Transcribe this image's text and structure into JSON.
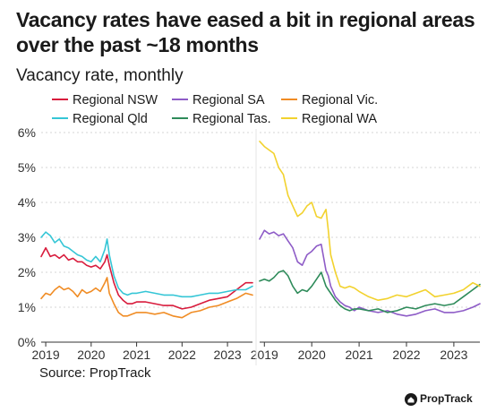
{
  "title": "Vacancy rates have eased a bit in regional areas over the past ~18 months",
  "subtitle": "Vacancy rate, monthly",
  "source": "Source: PropTrack",
  "brand": "PropTrack",
  "brand_icon": "house-logo-icon",
  "chart_data": [
    {
      "type": "line",
      "panel": "left",
      "ylim": [
        0,
        6
      ],
      "yticks": [
        "0%",
        "1%",
        "2%",
        "3%",
        "4%",
        "5%",
        "6%"
      ],
      "xticks": [
        "2019",
        "2020",
        "2021",
        "2022",
        "2023"
      ],
      "xlim": [
        2018.9,
        2023.55
      ],
      "grid": "horizontal",
      "series": [
        {
          "name": "Regional NSW",
          "color": "#d81b3c",
          "x": [
            2018.9,
            2019.0,
            2019.1,
            2019.2,
            2019.3,
            2019.4,
            2019.5,
            2019.6,
            2019.7,
            2019.8,
            2019.9,
            2020.0,
            2020.1,
            2020.2,
            2020.3,
            2020.35,
            2020.4,
            2020.5,
            2020.6,
            2020.7,
            2020.8,
            2020.9,
            2021.0,
            2021.2,
            2021.4,
            2021.6,
            2021.8,
            2022.0,
            2022.2,
            2022.4,
            2022.6,
            2022.8,
            2023.0,
            2023.2,
            2023.4,
            2023.55
          ],
          "values": [
            2.45,
            2.7,
            2.45,
            2.5,
            2.4,
            2.5,
            2.35,
            2.4,
            2.3,
            2.3,
            2.2,
            2.15,
            2.2,
            2.1,
            2.3,
            2.5,
            2.2,
            1.7,
            1.35,
            1.2,
            1.1,
            1.1,
            1.15,
            1.15,
            1.1,
            1.05,
            1.05,
            0.95,
            1.0,
            1.1,
            1.2,
            1.25,
            1.3,
            1.5,
            1.7,
            1.7
          ]
        },
        {
          "name": "Regional Qld",
          "color": "#35c6d6",
          "x": [
            2018.9,
            2019.0,
            2019.1,
            2019.2,
            2019.3,
            2019.4,
            2019.5,
            2019.6,
            2019.7,
            2019.8,
            2019.9,
            2020.0,
            2020.1,
            2020.2,
            2020.3,
            2020.35,
            2020.4,
            2020.5,
            2020.6,
            2020.7,
            2020.8,
            2020.9,
            2021.0,
            2021.2,
            2021.4,
            2021.6,
            2021.8,
            2022.0,
            2022.2,
            2022.4,
            2022.6,
            2022.8,
            2023.0,
            2023.2,
            2023.4,
            2023.55
          ],
          "values": [
            3.0,
            3.15,
            3.05,
            2.85,
            2.95,
            2.75,
            2.7,
            2.6,
            2.5,
            2.45,
            2.35,
            2.3,
            2.45,
            2.3,
            2.65,
            2.95,
            2.5,
            1.9,
            1.55,
            1.4,
            1.35,
            1.4,
            1.4,
            1.45,
            1.4,
            1.35,
            1.35,
            1.3,
            1.3,
            1.35,
            1.4,
            1.4,
            1.45,
            1.5,
            1.5,
            1.6
          ]
        },
        {
          "name": "Regional Vic.",
          "color": "#f08c24",
          "x": [
            2018.9,
            2019.0,
            2019.1,
            2019.2,
            2019.3,
            2019.4,
            2019.5,
            2019.6,
            2019.7,
            2019.8,
            2019.9,
            2020.0,
            2020.1,
            2020.2,
            2020.3,
            2020.35,
            2020.4,
            2020.5,
            2020.6,
            2020.7,
            2020.8,
            2020.9,
            2021.0,
            2021.2,
            2021.4,
            2021.6,
            2021.8,
            2022.0,
            2022.2,
            2022.4,
            2022.6,
            2022.8,
            2023.0,
            2023.2,
            2023.4,
            2023.55
          ],
          "values": [
            1.25,
            1.4,
            1.35,
            1.5,
            1.6,
            1.5,
            1.55,
            1.45,
            1.3,
            1.5,
            1.4,
            1.45,
            1.55,
            1.45,
            1.7,
            1.85,
            1.4,
            1.1,
            0.85,
            0.75,
            0.75,
            0.8,
            0.85,
            0.85,
            0.8,
            0.85,
            0.75,
            0.7,
            0.85,
            0.9,
            1.0,
            1.05,
            1.15,
            1.25,
            1.4,
            1.35
          ]
        }
      ]
    },
    {
      "type": "line",
      "panel": "right",
      "ylim": [
        0,
        6
      ],
      "xticks": [
        "2019",
        "2020",
        "2021",
        "2022",
        "2023"
      ],
      "xlim": [
        2018.9,
        2023.55
      ],
      "grid": "horizontal",
      "series": [
        {
          "name": "Regional SA",
          "color": "#8e5cc7",
          "x": [
            2018.9,
            2019.0,
            2019.1,
            2019.2,
            2019.3,
            2019.4,
            2019.5,
            2019.6,
            2019.7,
            2019.8,
            2019.9,
            2020.0,
            2020.1,
            2020.2,
            2020.3,
            2020.35,
            2020.4,
            2020.5,
            2020.6,
            2020.7,
            2020.8,
            2020.9,
            2021.0,
            2021.2,
            2021.4,
            2021.6,
            2021.8,
            2022.0,
            2022.2,
            2022.4,
            2022.6,
            2022.8,
            2023.0,
            2023.2,
            2023.4,
            2023.55
          ],
          "values": [
            2.95,
            3.2,
            3.1,
            3.15,
            3.05,
            3.1,
            2.9,
            2.7,
            2.3,
            2.2,
            2.5,
            2.6,
            2.75,
            2.8,
            2.05,
            1.9,
            1.6,
            1.3,
            1.15,
            1.05,
            1.0,
            0.9,
            1.0,
            0.9,
            0.85,
            0.9,
            0.8,
            0.75,
            0.8,
            0.9,
            0.95,
            0.85,
            0.85,
            0.9,
            1.0,
            1.1
          ]
        },
        {
          "name": "Regional Tas.",
          "color": "#2e8b5a",
          "x": [
            2018.9,
            2019.0,
            2019.1,
            2019.2,
            2019.3,
            2019.4,
            2019.5,
            2019.6,
            2019.7,
            2019.8,
            2019.9,
            2020.0,
            2020.1,
            2020.2,
            2020.3,
            2020.35,
            2020.4,
            2020.5,
            2020.6,
            2020.7,
            2020.8,
            2020.9,
            2021.0,
            2021.2,
            2021.4,
            2021.6,
            2021.8,
            2022.0,
            2022.2,
            2022.4,
            2022.6,
            2022.8,
            2023.0,
            2023.2,
            2023.4,
            2023.55
          ],
          "values": [
            1.75,
            1.8,
            1.75,
            1.85,
            2.0,
            2.05,
            1.9,
            1.6,
            1.4,
            1.5,
            1.45,
            1.6,
            1.8,
            2.0,
            1.6,
            1.5,
            1.4,
            1.2,
            1.05,
            0.95,
            0.9,
            0.95,
            0.95,
            0.9,
            0.95,
            0.85,
            0.9,
            1.0,
            0.95,
            1.05,
            1.1,
            1.05,
            1.1,
            1.3,
            1.5,
            1.65
          ]
        },
        {
          "name": "Regional WA",
          "color": "#f2d22e",
          "x": [
            2018.9,
            2019.0,
            2019.1,
            2019.2,
            2019.3,
            2019.4,
            2019.5,
            2019.6,
            2019.7,
            2019.8,
            2019.9,
            2020.0,
            2020.1,
            2020.2,
            2020.3,
            2020.35,
            2020.4,
            2020.5,
            2020.6,
            2020.7,
            2020.8,
            2020.9,
            2021.0,
            2021.2,
            2021.4,
            2021.6,
            2021.8,
            2022.0,
            2022.2,
            2022.4,
            2022.6,
            2022.8,
            2023.0,
            2023.2,
            2023.4,
            2023.55
          ],
          "values": [
            5.75,
            5.6,
            5.5,
            5.4,
            5.0,
            4.8,
            4.2,
            3.9,
            3.6,
            3.7,
            3.9,
            4.0,
            3.6,
            3.55,
            3.8,
            3.2,
            2.5,
            2.0,
            1.6,
            1.55,
            1.6,
            1.55,
            1.45,
            1.3,
            1.2,
            1.25,
            1.35,
            1.3,
            1.4,
            1.5,
            1.3,
            1.35,
            1.4,
            1.5,
            1.7,
            1.6
          ]
        }
      ]
    }
  ]
}
